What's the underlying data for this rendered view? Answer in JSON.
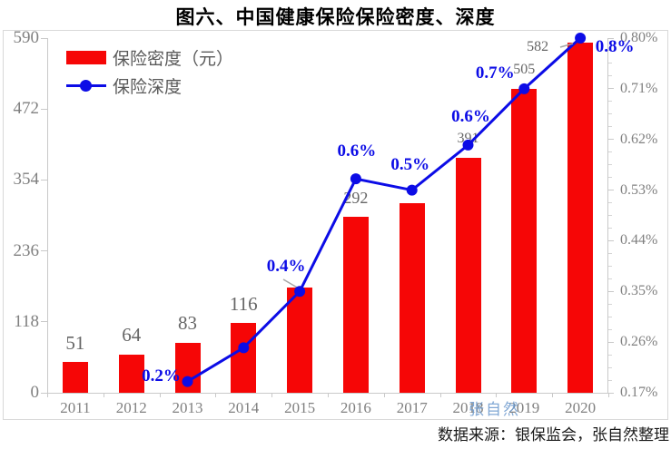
{
  "chart_data": {
    "type": "combo-bar-line",
    "title": "图六、中国健康保险保险密度、深度",
    "categories": [
      "2011",
      "2012",
      "2013",
      "2014",
      "2015",
      "2016",
      "2017",
      "2018",
      "2019",
      "2020"
    ],
    "series": [
      {
        "name": "保险密度（元）",
        "type": "bar",
        "axis": "left",
        "values": [
          51,
          64,
          83,
          116,
          175,
          292,
          316,
          391,
          505,
          582
        ],
        "data_labels": [
          "51",
          "64",
          "83",
          "116",
          null,
          "292",
          null,
          "391",
          "505",
          "582"
        ]
      },
      {
        "name": "保险深度",
        "type": "line",
        "axis": "right",
        "values": [
          null,
          null,
          0.19,
          0.25,
          0.35,
          0.55,
          0.53,
          0.61,
          0.71,
          0.8
        ],
        "data_labels": [
          null,
          null,
          "0.2%",
          null,
          "0.4%",
          "0.6%",
          "0.5%",
          "0.6%",
          "0.7%",
          "0.8%"
        ]
      }
    ],
    "left_axis": {
      "range": [
        0,
        590
      ],
      "ticks": [
        {
          "label": "0",
          "value": 0
        },
        {
          "label": "118",
          "value": 118
        },
        {
          "label": "236",
          "value": 236
        },
        {
          "label": "354",
          "value": 354
        },
        {
          "label": "472",
          "value": 472
        },
        {
          "label": "590",
          "value": 590
        }
      ]
    },
    "right_axis": {
      "range": [
        0.17,
        0.8
      ],
      "ticks": [
        {
          "label": "0.17%",
          "value": 0.17
        },
        {
          "label": "0.26%",
          "value": 0.26
        },
        {
          "label": "0.35%",
          "value": 0.35
        },
        {
          "label": "0.44%",
          "value": 0.44
        },
        {
          "label": "0.53%",
          "value": 0.53
        },
        {
          "label": "0.62%",
          "value": 0.62
        },
        {
          "label": "0.71%",
          "value": 0.71
        },
        {
          "label": "0.80%",
          "value": 0.8
        }
      ]
    },
    "grid": false,
    "legend_position": "top-left",
    "colors": {
      "bar": "#f60606",
      "line": "#0c0ce6",
      "point_label": "#0c0ce6",
      "bar_label": "#666666",
      "axis_text": "#808080",
      "axis_line": "#c9c9c9",
      "frame_border": "#d9d9d9",
      "leader": "#a6a6a6",
      "watermark": "#6a98cd"
    },
    "source": "数据来源：银保监会，张自然整理",
    "watermark": "张自然"
  }
}
